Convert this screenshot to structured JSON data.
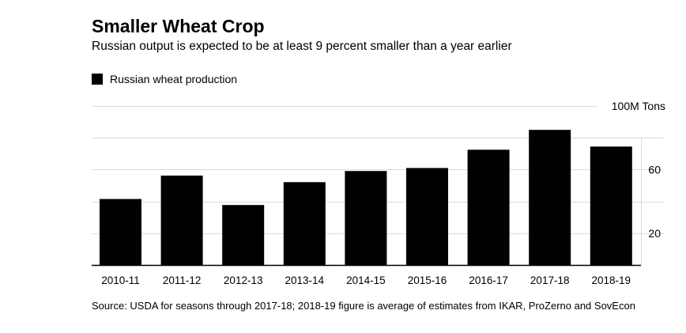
{
  "title": "Smaller Wheat Crop",
  "subtitle": "Russian output is expected to be at least 9 percent smaller than a year earlier",
  "source": "Source: USDA for seasons through 2017-18; 2018-19 figure is average of estimates from IKAR, ProZerno and SovEcon",
  "colors": {
    "bar": "#000000",
    "grid": "#dcdcdc",
    "axis": "#000000",
    "text": "#000000"
  },
  "chart_data": {
    "type": "bar",
    "title": "Smaller Wheat Crop",
    "subtitle": "Russian output is expected to be at least 9 percent smaller than a year earlier",
    "categories": [
      "2010-11",
      "2011-12",
      "2012-13",
      "2013-14",
      "2014-15",
      "2015-16",
      "2016-17",
      "2017-18",
      "2018-19"
    ],
    "series": [
      {
        "name": "Russian wheat production",
        "values": [
          41.5,
          56.2,
          37.7,
          52.1,
          59.1,
          61.0,
          72.5,
          85.0,
          74.5
        ]
      }
    ],
    "ylim": [
      0,
      100
    ],
    "yticks": [
      {
        "value": 20,
        "label": "20"
      },
      {
        "value": 60,
        "label": "60"
      },
      {
        "value": 100,
        "label": "100M Tons"
      }
    ],
    "gridlines": [
      20,
      40,
      60,
      80,
      100
    ],
    "grid": true,
    "legend_position": "top-left"
  }
}
